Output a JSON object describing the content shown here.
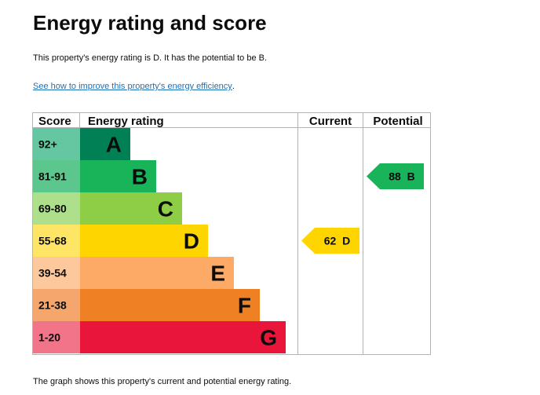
{
  "page": {
    "title": "Energy rating and score",
    "summary": "This property's energy rating is D. It has the potential to be B.",
    "improve_link": "See how to improve this property's energy efficiency",
    "improve_suffix": ".",
    "footer": "The graph shows this property's current and potential energy rating."
  },
  "chart_data": {
    "type": "table",
    "headers": {
      "score": "Score",
      "rating": "Energy rating",
      "current": "Current",
      "potential": "Potential"
    },
    "bands": [
      {
        "score_range": "92+",
        "letter": "A",
        "color": "#008054",
        "score_color": "#64c7a1"
      },
      {
        "score_range": "81-91",
        "letter": "B",
        "color": "#19b459",
        "score_color": "#5cc78d"
      },
      {
        "score_range": "69-80",
        "letter": "C",
        "color": "#8dce46",
        "score_color": "#aedf8a"
      },
      {
        "score_range": "55-68",
        "letter": "D",
        "color": "#ffd500",
        "score_color": "#ffe566"
      },
      {
        "score_range": "39-54",
        "letter": "E",
        "color": "#fcaa65",
        "score_color": "#fdc89b"
      },
      {
        "score_range": "21-38",
        "letter": "F",
        "color": "#ef8023",
        "score_color": "#f4a66d"
      },
      {
        "score_range": "1-20",
        "letter": "G",
        "color": "#e9153b",
        "score_color": "#f27489"
      }
    ],
    "current": {
      "score": 62,
      "letter": "D",
      "label": "62  D",
      "color": "#ffd500"
    },
    "potential": {
      "score": 88,
      "letter": "B",
      "label": "88  B",
      "color": "#19b459"
    }
  }
}
